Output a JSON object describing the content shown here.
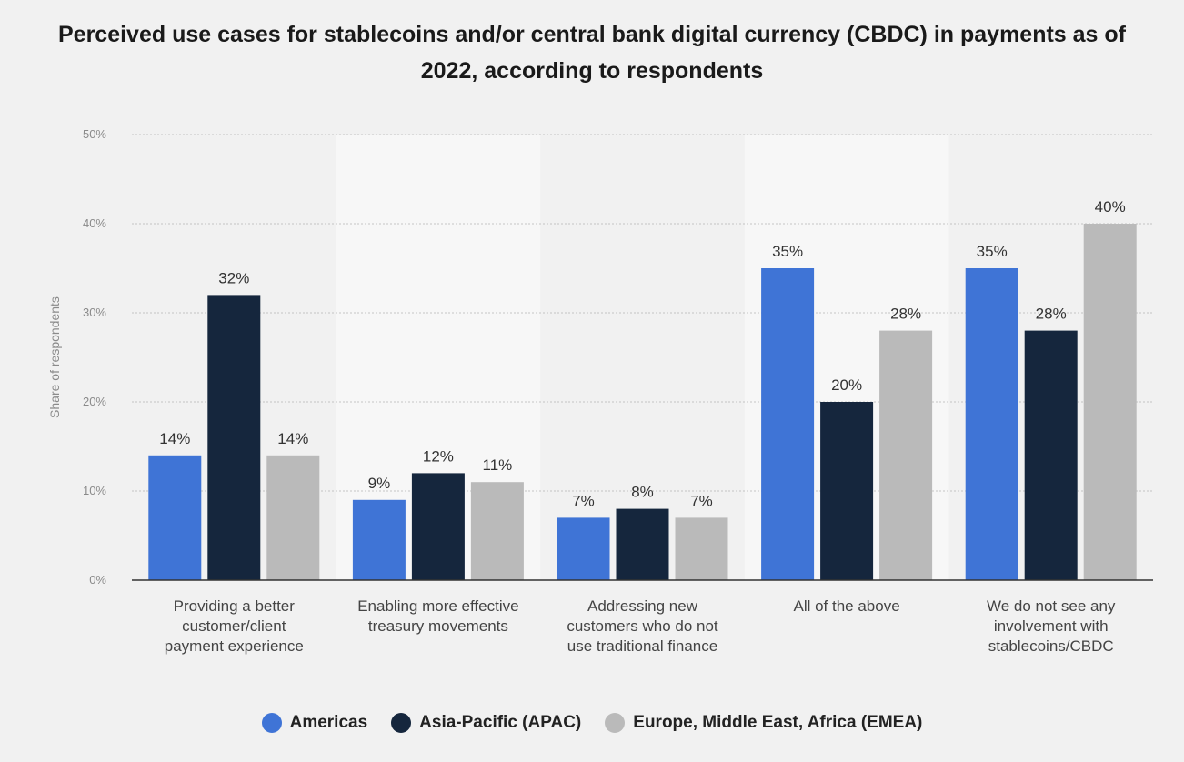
{
  "chart_data": {
    "type": "bar",
    "title": "Perceived use cases for stablecoins and/or central bank digital currency (CBDC) in payments as of 2022, according to respondents",
    "xlabel": "",
    "ylabel": "Share of respondents",
    "ylim": [
      0,
      50
    ],
    "yticks": [
      "0%",
      "10%",
      "20%",
      "30%",
      "40%",
      "50%"
    ],
    "grid": true,
    "legend_position": "bottom",
    "categories": [
      [
        "Providing a better",
        "customer/client",
        "payment experience"
      ],
      [
        "Enabling more effective",
        "treasury movements"
      ],
      [
        "Addressing new",
        "customers who do not",
        "use traditional finance"
      ],
      [
        "All of the above"
      ],
      [
        "We do not see any",
        "involvement with",
        "stablecoins/CBDC"
      ]
    ],
    "series": [
      {
        "name": "Americas",
        "color": "#3f74d6",
        "values": [
          14,
          9,
          7,
          35,
          35
        ],
        "labels": [
          "14%",
          "9%",
          "7%",
          "35%",
          "35%"
        ]
      },
      {
        "name": "Asia-Pacific (APAC)",
        "color": "#15263d",
        "values": [
          32,
          12,
          8,
          20,
          28
        ],
        "labels": [
          "32%",
          "12%",
          "8%",
          "20%",
          "28%"
        ]
      },
      {
        "name": "Europe, Middle East, Africa (EMEA)",
        "color": "#bababa",
        "values": [
          14,
          11,
          7,
          28,
          40
        ],
        "labels": [
          "14%",
          "11%",
          "7%",
          "28%",
          "40%"
        ]
      }
    ]
  }
}
